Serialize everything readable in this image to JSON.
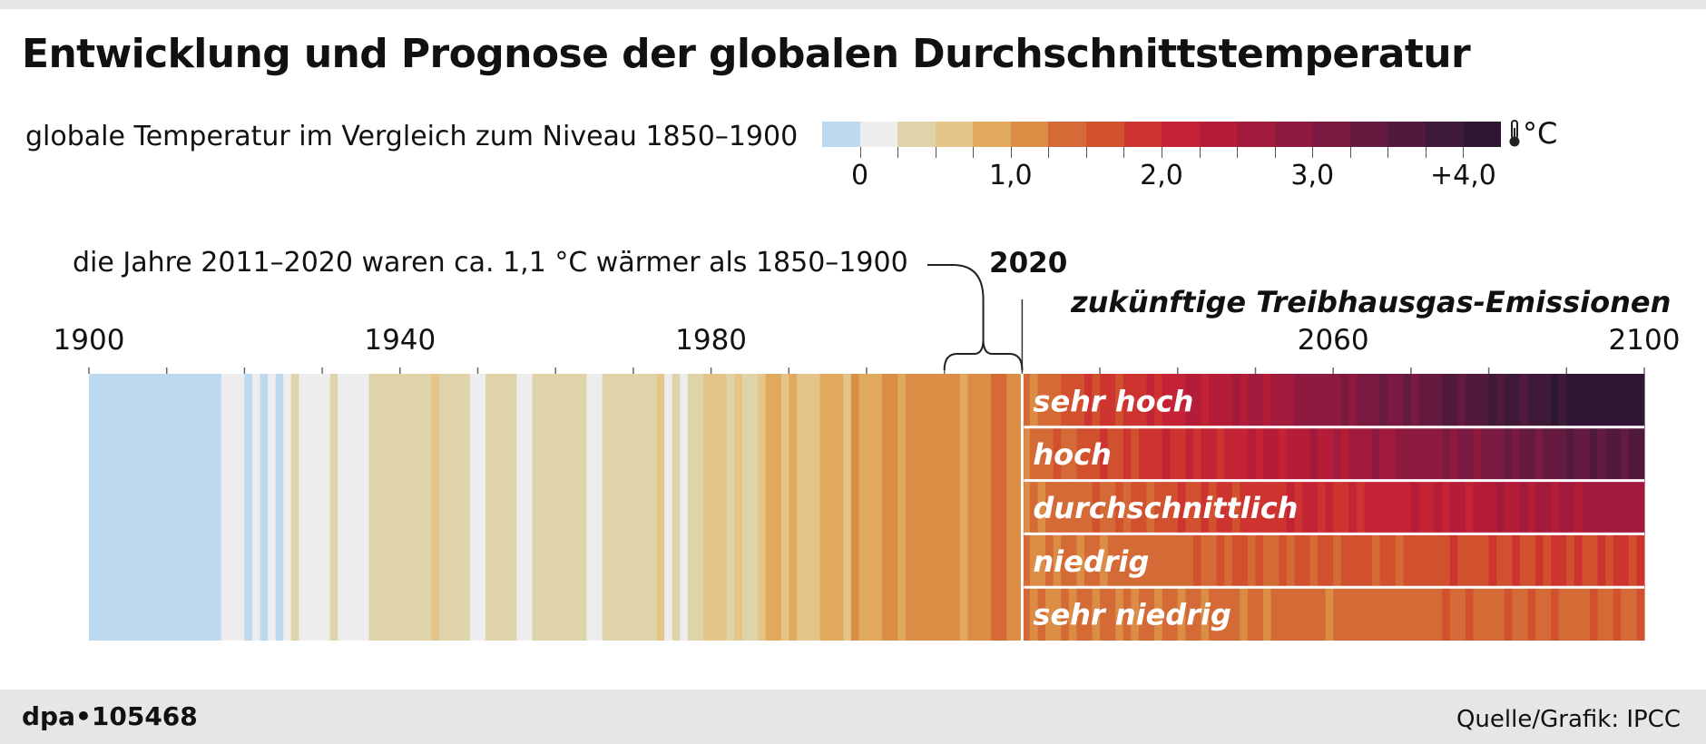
{
  "title": "Entwicklung und Prognose der globalen Durchschnittstemperatur",
  "subtitle": "globale Temperatur im Vergleich zum Niveau 1850–1900",
  "legend": {
    "unit": "°C",
    "labels": [
      {
        "text": "0",
        "value": 0
      },
      {
        "text": "1,0",
        "value": 1.0
      },
      {
        "text": "2,0",
        "value": 2.0
      },
      {
        "text": "3,0",
        "value": 3.0
      },
      {
        "text": "+4,0",
        "value": 4.0
      }
    ],
    "min": -0.25,
    "max": 4.25,
    "step": 0.25,
    "colors": [
      "#bcd9f0",
      "#ededed",
      "#dfd4a9",
      "#e4c488",
      "#e0a95b",
      "#db8d45",
      "#d46b36",
      "#d1512f",
      "#cd3430",
      "#c32334",
      "#b41c38",
      "#a31b3c",
      "#8e1a40",
      "#7b1a41",
      "#651a40",
      "#511a3c",
      "#3f1a38",
      "#2f1733"
    ]
  },
  "annotation": {
    "text": "die Jahre 2011–2020 waren ca. 1,1 °C wärmer als 1850–1900",
    "year_label": "2020",
    "future_title": "zukünftige Treibhausgas-Emissionen"
  },
  "footer": {
    "id": "dpa•105468",
    "source": "Quelle/Grafik: IPCC"
  },
  "chart_data": {
    "type": "heatmap",
    "x_axis": {
      "min": 1900,
      "max": 2100,
      "tick_step": 10,
      "labels": [
        1900,
        1940,
        1980,
        2060,
        2100
      ]
    },
    "historical": {
      "start_year": 1900,
      "end_year": 2020,
      "values": [
        -0.05,
        -0.1,
        -0.2,
        -0.15,
        -0.25,
        -0.3,
        -0.15,
        -0.25,
        -0.3,
        -0.25,
        -0.3,
        -0.3,
        -0.1,
        -0.05,
        -0.05,
        -0.1,
        -0.05,
        0.0,
        0.05,
        0.05,
        -0.05,
        0.1,
        -0.05,
        0.0,
        -0.1,
        0.05,
        0.25,
        0.1,
        0.15,
        0.0,
        0.2,
        0.25,
        0.2,
        0.05,
        0.2,
        0.15,
        0.25,
        0.3,
        0.3,
        0.3,
        0.4,
        0.45,
        0.4,
        0.45,
        0.6,
        0.45,
        0.3,
        0.35,
        0.3,
        0.2,
        0.2,
        0.35,
        0.35,
        0.45,
        0.25,
        0.2,
        0.15,
        0.4,
        0.45,
        0.35,
        0.3,
        0.4,
        0.4,
        0.45,
        0.15,
        0.2,
        0.3,
        0.3,
        0.25,
        0.4,
        0.35,
        0.25,
        0.35,
        0.5,
        0.2,
        0.3,
        0.15,
        0.45,
        0.35,
        0.5,
        0.55,
        0.6,
        0.45,
        0.65,
        0.45,
        0.45,
        0.55,
        0.75,
        0.75,
        0.6,
        0.8,
        0.7,
        0.6,
        0.65,
        0.75,
        0.9,
        0.75,
        0.65,
        1.0,
        0.9,
        0.8,
        0.95,
        1.0,
        1.0,
        0.95,
        1.05,
        1.0,
        1.0,
        1.05,
        1.0,
        1.1,
        1.05,
        0.95,
        1.0,
        1.05,
        1.15,
        1.25,
        1.3,
        1.2,
        1.15,
        1.3
      ]
    },
    "scenarios": [
      {
        "name": "sehr hoch",
        "start": 1.25,
        "end": 4.4
      },
      {
        "name": "hoch",
        "start": 1.25,
        "end": 3.65
      },
      {
        "name": "durchschnittlich",
        "start": 1.25,
        "end": 2.7
      },
      {
        "name": "niedrig",
        "start": 1.25,
        "end": 1.8
      },
      {
        "name": "sehr niedrig",
        "start": 1.25,
        "end": 1.45
      }
    ]
  }
}
